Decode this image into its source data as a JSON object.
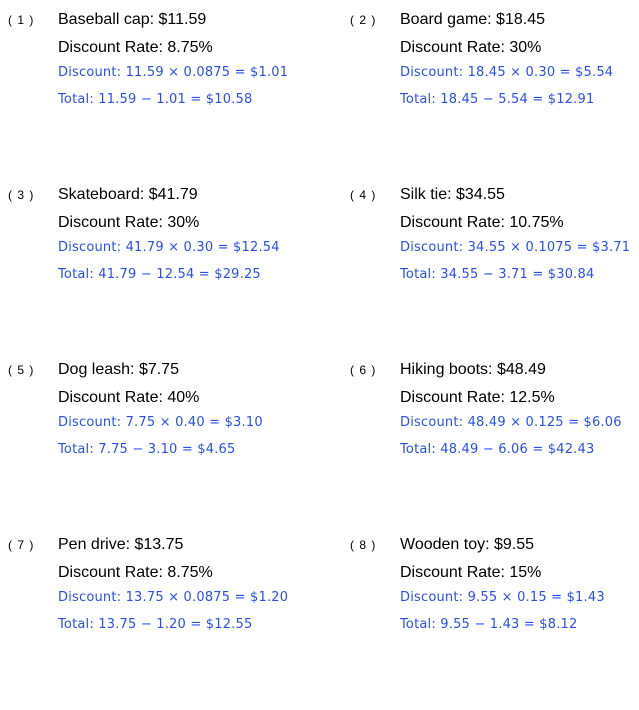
{
  "page": {
    "background_color": "#ffffff",
    "problem_text_color": "#000000",
    "answer_text_color": "#2a4ff0"
  },
  "problems": [
    {
      "number": "( 1 )",
      "item_line": "Baseball cap: $11.59",
      "rate_line": "Discount Rate: 8.75%",
      "discount_line": "Discount: 11.59 × 0.0875 = $1.01",
      "total_line": "Total: 11.59 − 1.01 = $10.58"
    },
    {
      "number": "( 2 )",
      "item_line": "Board game: $18.45",
      "rate_line": "Discount Rate: 30%",
      "discount_line": "Discount: 18.45 × 0.30 = $5.54",
      "total_line": "Total: 18.45 − 5.54 = $12.91"
    },
    {
      "number": "( 3 )",
      "item_line": "Skateboard: $41.79",
      "rate_line": "Discount Rate: 30%",
      "discount_line": "Discount: 41.79 × 0.30 = $12.54",
      "total_line": "Total: 41.79 − 12.54 = $29.25"
    },
    {
      "number": "( 4 )",
      "item_line": "Silk tie: $34.55",
      "rate_line": "Discount Rate: 10.75%",
      "discount_line": "Discount: 34.55 × 0.1075 = $3.71",
      "total_line": "Total: 34.55 − 3.71 = $30.84"
    },
    {
      "number": "( 5 )",
      "item_line": "Dog leash: $7.75",
      "rate_line": "Discount Rate: 40%",
      "discount_line": "Discount: 7.75 × 0.40 = $3.10",
      "total_line": "Total: 7.75 − 3.10 = $4.65"
    },
    {
      "number": "( 6 )",
      "item_line": "Hiking boots: $48.49",
      "rate_line": "Discount Rate: 12.5%",
      "discount_line": "Discount: 48.49 × 0.125 = $6.06",
      "total_line": "Total: 48.49 − 6.06 = $42.43"
    },
    {
      "number": "( 7 )",
      "item_line": "Pen drive: $13.75",
      "rate_line": "Discount Rate: 8.75%",
      "discount_line": "Discount: 13.75 × 0.0875 = $1.20",
      "total_line": "Total: 13.75 − 1.20 = $12.55"
    },
    {
      "number": "( 8 )",
      "item_line": "Wooden toy: $9.55",
      "rate_line": "Discount Rate: 15%",
      "discount_line": "Discount: 9.55 × 0.15 = $1.43",
      "total_line": "Total: 9.55 − 1.43 = $8.12"
    }
  ]
}
